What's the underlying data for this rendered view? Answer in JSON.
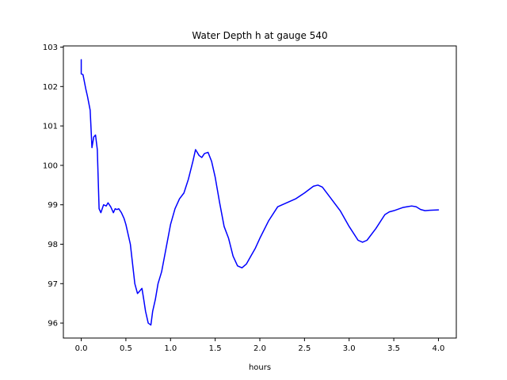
{
  "chart_data": {
    "type": "line",
    "title": "Water Depth h at gauge 540",
    "xlabel": "hours",
    "ylabel": "",
    "xlim": [
      -0.2,
      4.2
    ],
    "ylim": [
      95.62,
      103.03
    ],
    "xticks": [
      "0.0",
      "0.5",
      "1.0",
      "1.5",
      "2.0",
      "2.5",
      "3.0",
      "3.5",
      "4.0"
    ],
    "yticks": [
      "96",
      "97",
      "98",
      "99",
      "100",
      "101",
      "102",
      "103"
    ],
    "grid": false,
    "legend": "none",
    "series": [
      {
        "color": "#0000ff",
        "x": [
          0.0,
          0.0,
          0.02,
          0.05,
          0.07,
          0.1,
          0.12,
          0.14,
          0.16,
          0.18,
          0.2,
          0.22,
          0.25,
          0.28,
          0.3,
          0.33,
          0.36,
          0.38,
          0.4,
          0.42,
          0.45,
          0.48,
          0.5,
          0.55,
          0.58,
          0.6,
          0.63,
          0.65,
          0.68,
          0.7,
          0.72,
          0.75,
          0.78,
          0.8,
          0.83,
          0.86,
          0.9,
          0.95,
          1.0,
          1.05,
          1.1,
          1.15,
          1.2,
          1.25,
          1.28,
          1.32,
          1.35,
          1.38,
          1.42,
          1.46,
          1.5,
          1.55,
          1.6,
          1.65,
          1.7,
          1.75,
          1.8,
          1.85,
          1.9,
          1.95,
          2.0,
          2.1,
          2.2,
          2.3,
          2.4,
          2.5,
          2.6,
          2.65,
          2.7,
          2.8,
          2.9,
          3.0,
          3.1,
          3.15,
          3.2,
          3.3,
          3.4,
          3.45,
          3.5,
          3.6,
          3.65,
          3.7,
          3.75,
          3.8,
          3.85,
          3.9,
          4.0
        ],
        "values": [
          102.68,
          102.32,
          102.3,
          101.95,
          101.75,
          101.4,
          100.45,
          100.72,
          100.77,
          100.4,
          98.9,
          98.8,
          99.0,
          98.97,
          99.05,
          98.95,
          98.8,
          98.9,
          98.88,
          98.9,
          98.8,
          98.65,
          98.5,
          98.0,
          97.4,
          97.0,
          96.75,
          96.8,
          96.88,
          96.6,
          96.3,
          96.0,
          95.95,
          96.3,
          96.6,
          97.0,
          97.3,
          97.9,
          98.5,
          98.9,
          99.15,
          99.3,
          99.65,
          100.1,
          100.4,
          100.25,
          100.2,
          100.3,
          100.33,
          100.1,
          99.7,
          99.05,
          98.45,
          98.15,
          97.7,
          97.45,
          97.4,
          97.5,
          97.7,
          97.9,
          98.15,
          98.6,
          98.95,
          99.05,
          99.15,
          99.3,
          99.47,
          99.5,
          99.45,
          99.15,
          98.85,
          98.45,
          98.1,
          98.05,
          98.1,
          98.4,
          98.75,
          98.82,
          98.85,
          98.93,
          98.95,
          98.97,
          98.95,
          98.88,
          98.85,
          98.86,
          98.87
        ]
      }
    ]
  }
}
